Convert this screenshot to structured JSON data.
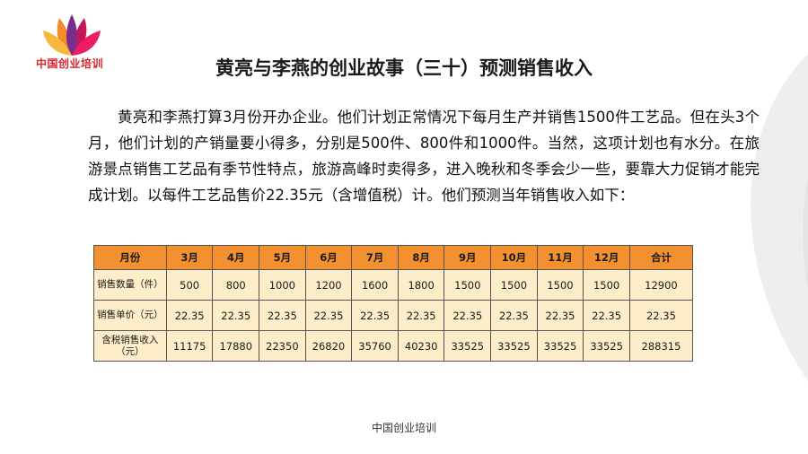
{
  "logo": {
    "text": "中国创业培训"
  },
  "title": "黄亮与李燕的创业故事（三十）预测销售收入",
  "paragraph": "黄亮和李燕打算3月份开办企业。他们计划正常情况下每月生产并销售1500件工艺品。但在头3个月，他们计划的产销量要小得多，分别是500件、800件和1000件。当然，这项计划也有水分。在旅游景点销售工艺品有季节性特点，旅游高峰时卖得多，进入晚秋和冬季会少一些，要靠大力促销才能完成计划。以每件工艺品售价22.35元（含增值税）计。他们预测当年销售收入如下：",
  "table": {
    "headers": [
      "月份",
      "3月",
      "4月",
      "5月",
      "6月",
      "7月",
      "8月",
      "9月",
      "10月",
      "11月",
      "12月",
      "合计"
    ],
    "rows": [
      [
        "销售数量（件）",
        "500",
        "800",
        "1000",
        "1200",
        "1600",
        "1800",
        "1500",
        "1500",
        "1500",
        "1500",
        "12900"
      ],
      [
        "销售单价（元）",
        "22.35",
        "22.35",
        "22.35",
        "22.35",
        "22.35",
        "22.35",
        "22.35",
        "22.35",
        "22.35",
        "22.35",
        "22.35"
      ],
      [
        "含税销售收入（元）",
        "11175",
        "17880",
        "22350",
        "26820",
        "35760",
        "40230",
        "33525",
        "33525",
        "33525",
        "33525",
        "288315"
      ]
    ]
  },
  "footer": "中国创业培训",
  "colors": {
    "header_bg": "#f3902f",
    "cell_bg": "#fdedc8",
    "logo_red": "#d9232d"
  }
}
